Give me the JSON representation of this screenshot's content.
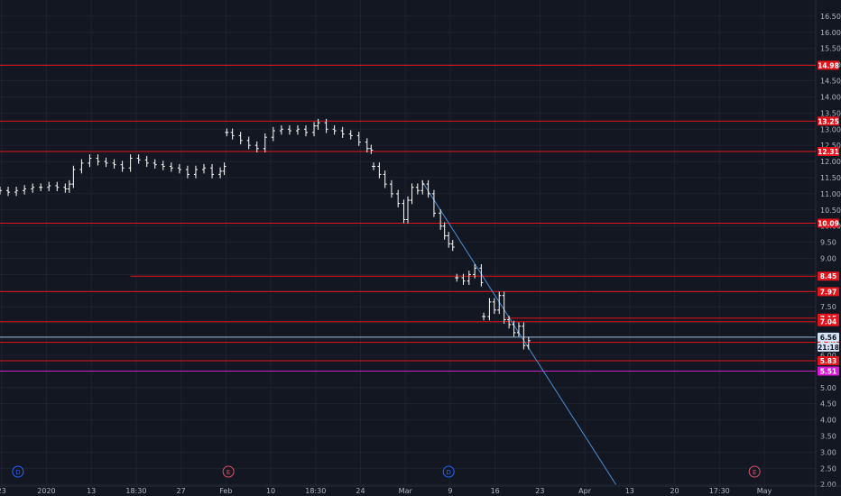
{
  "chart_data": {
    "type": "candlestick",
    "y_axis": {
      "range": [
        1.95,
        17.0
      ],
      "ticks": [
        "2.00",
        "2.50",
        "3.00",
        "3.50",
        "4.00",
        "4.50",
        "5.00",
        "5.50",
        "6.00",
        "6.50",
        "7.00",
        "7.50",
        "8.00",
        "8.50",
        "9.00",
        "9.50",
        "10.00",
        "10.50",
        "11.00",
        "11.50",
        "12.00",
        "12.50",
        "13.00",
        "13.50",
        "14.00",
        "14.50",
        "15.00",
        "15.50",
        "16.00",
        "16.50"
      ]
    },
    "x_axis": {
      "ticks": [
        "23",
        "2020",
        "13",
        "18:30",
        "27",
        "Feb",
        "10",
        "18:30",
        "24",
        "Mar",
        "9",
        "16",
        "23",
        "Apr",
        "13",
        "20",
        "17:30",
        "May"
      ]
    },
    "price_levels": [
      {
        "label": "14.98",
        "value": 14.98,
        "color": "#e3141b",
        "badge_bg": "#e3141b",
        "badge_fg": "#ffffff",
        "from": 0.0
      },
      {
        "label": "13.25",
        "value": 13.25,
        "color": "#e3141b",
        "badge_bg": "#e3141b",
        "badge_fg": "#ffffff",
        "from": 0.0
      },
      {
        "label": "12.31",
        "value": 12.31,
        "color": "#e3141b",
        "badge_bg": "#e3141b",
        "badge_fg": "#ffffff",
        "from": 0.0
      },
      {
        "label": "10.09",
        "value": 10.09,
        "color": "#e3141b",
        "badge_bg": "#e3141b",
        "badge_fg": "#ffffff",
        "from": 0.0
      },
      {
        "label": "8.45",
        "value": 8.45,
        "color": "#e3141b",
        "badge_bg": "#e3141b",
        "badge_fg": "#ffffff",
        "from": 0.16
      },
      {
        "label": "7.97",
        "value": 7.97,
        "color": "#e3141b",
        "badge_bg": "#e3141b",
        "badge_fg": "#ffffff",
        "from": 0.0
      },
      {
        "label": "7.15",
        "value": 7.15,
        "color": "#e3141b",
        "badge_bg": "#e3141b",
        "badge_fg": "#ffffff",
        "from": 0.62
      },
      {
        "label": "7.04",
        "value": 7.04,
        "color": "#e3141b",
        "badge_bg": "#e3141b",
        "badge_fg": "#ffffff",
        "from": 0.0
      },
      {
        "label": "6.40",
        "value": 6.4,
        "color": "#e3141b",
        "badge_bg": "#e3141b",
        "badge_fg": "#ffffff",
        "from": 0.0
      },
      {
        "label": "5.83",
        "value": 5.83,
        "color": "#e3141b",
        "badge_bg": "#e3141b",
        "badge_fg": "#ffffff",
        "from": 0.0
      },
      {
        "label": "5.51",
        "value": 5.51,
        "color": "#c71ec7",
        "badge_bg": "#d81bd8",
        "badge_fg": "#ffffff",
        "from": 0.0
      }
    ],
    "current_price": {
      "label": "6.56",
      "value": 6.56,
      "countdown": "21:18",
      "line_color": "#9ec3e6",
      "badge_bg": "#d4e3f7",
      "badge_fg": "#131722"
    },
    "trendline": {
      "from": {
        "x": 0.517,
        "y": 11.4
      },
      "to": {
        "x": 0.755,
        "y": 2.0
      },
      "color": "#4a8fd4"
    },
    "events": [
      {
        "label": "D",
        "x": 0.022,
        "color": "#2962ff"
      },
      {
        "label": "E",
        "x": 0.28,
        "color": "#e0506a"
      },
      {
        "label": "D",
        "x": 0.55,
        "color": "#2962ff"
      },
      {
        "label": "E",
        "x": 0.925,
        "color": "#e0506a"
      }
    ],
    "price_series": {
      "color": "#ffffff",
      "segments": [
        {
          "x": [
            0.0,
            0.01,
            0.02,
            0.03,
            0.04,
            0.05,
            0.06,
            0.07,
            0.08,
            0.085,
            0.09,
            0.1,
            0.11,
            0.12,
            0.13,
            0.14,
            0.15,
            0.16,
            0.17,
            0.18,
            0.19,
            0.2,
            0.21,
            0.22,
            0.23,
            0.24,
            0.25,
            0.26,
            0.27,
            0.275
          ],
          "close": [
            11.1,
            11.05,
            11.1,
            11.15,
            11.2,
            11.2,
            11.25,
            11.2,
            11.15,
            11.3,
            11.75,
            11.95,
            12.1,
            12.0,
            11.95,
            11.9,
            11.8,
            12.1,
            12.05,
            11.95,
            11.9,
            11.85,
            11.8,
            11.75,
            11.6,
            11.75,
            11.8,
            11.6,
            11.7,
            11.85
          ]
        },
        {
          "x": [
            0.278,
            0.285,
            0.295,
            0.305,
            0.315,
            0.325,
            0.335,
            0.345,
            0.355,
            0.365,
            0.375,
            0.385,
            0.39,
            0.4,
            0.41,
            0.42,
            0.43,
            0.44,
            0.45,
            0.455
          ],
          "close": [
            12.9,
            12.8,
            12.65,
            12.5,
            12.4,
            12.75,
            12.95,
            13.0,
            12.95,
            13.0,
            12.9,
            13.1,
            13.2,
            13.0,
            12.95,
            12.85,
            12.8,
            12.6,
            12.4,
            12.35
          ]
        },
        {
          "x": [
            0.458,
            0.465,
            0.472,
            0.48,
            0.488,
            0.495,
            0.5,
            0.505,
            0.512,
            0.518,
            0.525,
            0.532,
            0.54,
            0.545,
            0.55,
            0.555
          ],
          "close": [
            11.85,
            11.6,
            11.3,
            11.0,
            10.7,
            10.2,
            10.8,
            11.2,
            11.1,
            11.3,
            11.0,
            10.4,
            10.0,
            9.7,
            9.45,
            9.35
          ]
        },
        {
          "x": [
            0.56,
            0.568,
            0.575,
            0.582,
            0.59
          ],
          "close": [
            8.4,
            8.3,
            8.5,
            8.7,
            8.25
          ]
        },
        {
          "x": [
            0.593,
            0.6,
            0.606,
            0.612,
            0.618,
            0.624,
            0.63,
            0.636,
            0.642,
            0.648
          ],
          "close": [
            7.2,
            7.65,
            7.4,
            7.85,
            7.1,
            6.95,
            6.7,
            6.9,
            6.3,
            6.45
          ]
        }
      ]
    }
  }
}
